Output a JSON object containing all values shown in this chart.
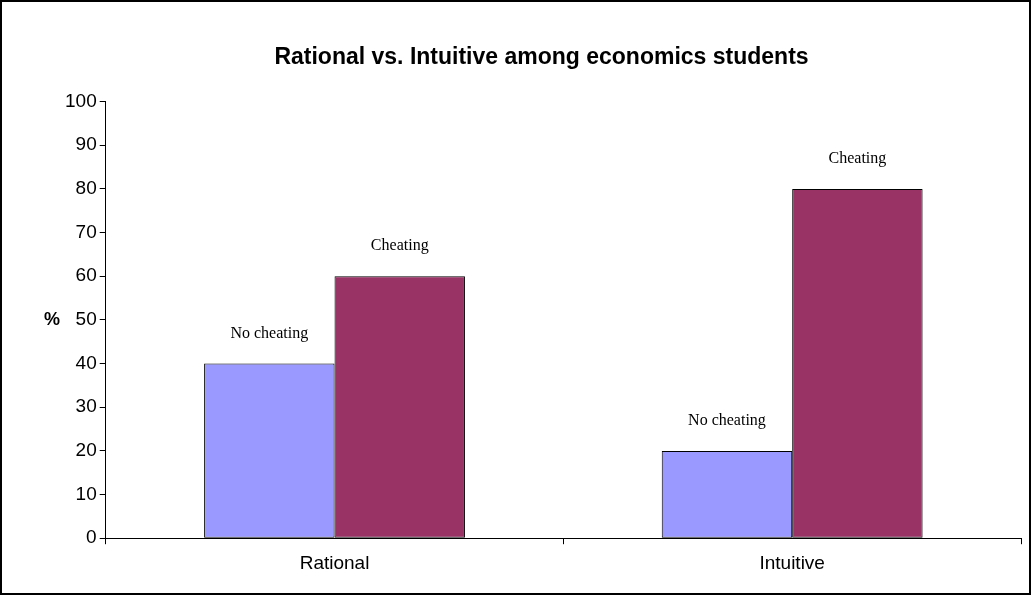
{
  "chart_data": {
    "type": "bar",
    "title": "Rational vs. Intuitive among economics students",
    "ylabel": "%",
    "categories": [
      "Rational",
      "Intuitive"
    ],
    "series": [
      {
        "name": "No cheating",
        "color": "#9999ff",
        "values": [
          40,
          20
        ]
      },
      {
        "name": "Cheating",
        "color": "#993366",
        "values": [
          60,
          80
        ]
      }
    ],
    "ylim": [
      0,
      100
    ],
    "yticks": [
      0,
      10,
      20,
      30,
      40,
      50,
      60,
      70,
      80,
      90,
      100
    ],
    "grid": false,
    "legend": false
  }
}
